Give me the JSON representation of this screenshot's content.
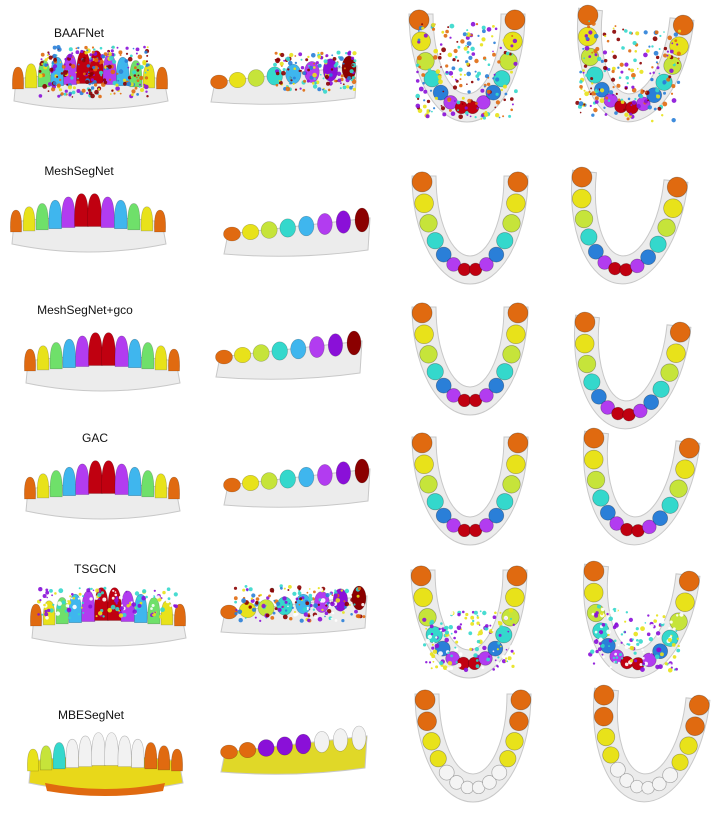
{
  "colors": {
    "gum": "#ececec",
    "gum_shadow": "#c8c8c8",
    "tooth_palette": [
      "#8b0000",
      "#c00010",
      "#8a10d8",
      "#b23cf0",
      "#2a7fd8",
      "#3fb6ee",
      "#34d8cc",
      "#6fe06a",
      "#c6e43a",
      "#e8e21a",
      "#e6a414",
      "#e06a10"
    ],
    "noise": [
      "#8b0000",
      "#8a10d8",
      "#34d8cc",
      "#e8e21a",
      "#e06a10",
      "#2a7fd8"
    ]
  },
  "rows": [
    {
      "label": "BAAFNet",
      "style": "noisy"
    },
    {
      "label": "MeshSegNet",
      "style": "clean"
    },
    {
      "label": "MeshSegNet+gco",
      "style": "clean"
    },
    {
      "label": "GAC",
      "style": "clean"
    },
    {
      "label": "TSGCN",
      "style": "speckled"
    },
    {
      "label": "MBESegNet",
      "style": "partial"
    }
  ],
  "views": [
    "front-view",
    "side-view",
    "occlusal-view-a",
    "occlusal-view-b"
  ]
}
